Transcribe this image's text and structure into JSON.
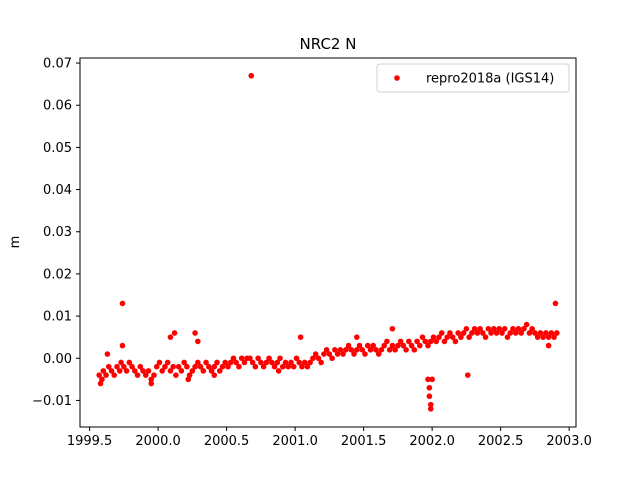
{
  "chart_data": {
    "type": "scatter",
    "title": "NRC2 N",
    "xlabel": "",
    "ylabel": "m",
    "xlim": [
      1999.43,
      2003.05
    ],
    "ylim": [
      -0.0163,
      0.0712
    ],
    "xticks": [
      1999.5,
      2000.0,
      2000.5,
      2001.0,
      2001.5,
      2002.0,
      2002.5,
      2003.0
    ],
    "xtick_labels": [
      "1999.5",
      "2000.0",
      "2000.5",
      "2001.0",
      "2001.5",
      "2002.0",
      "2002.5",
      "2003.0"
    ],
    "yticks": [
      -0.01,
      0.0,
      0.01,
      0.02,
      0.03,
      0.04,
      0.05,
      0.06,
      0.07
    ],
    "ytick_labels": [
      "−0.01",
      "0.00",
      "0.01",
      "0.02",
      "0.03",
      "0.04",
      "0.05",
      "0.06",
      "0.07"
    ],
    "grid": false,
    "legend": {
      "placement": "top-right",
      "entries": [
        "repro2018a (IGS14)"
      ]
    },
    "series": [
      {
        "name": "repro2018a (IGS14)",
        "color": "#ff0000",
        "marker": "circle",
        "x": [
          1999.57,
          1999.59,
          1999.6,
          1999.62,
          1999.64,
          1999.66,
          1999.68,
          1999.7,
          1999.72,
          1999.73,
          1999.75,
          1999.77,
          1999.79,
          1999.81,
          1999.83,
          1999.85,
          1999.87,
          1999.89,
          1999.91,
          1999.93,
          1999.95,
          1999.97,
          1999.99,
          2000.01,
          2000.03,
          2000.05,
          2000.07,
          2000.09,
          2000.11,
          2000.13,
          2000.15,
          2000.17,
          2000.19,
          2000.21,
          2000.23,
          2000.25,
          2000.27,
          2000.29,
          2000.31,
          2000.33,
          2000.35,
          2000.37,
          2000.39,
          2000.41,
          2000.43,
          2000.45,
          2000.47,
          2000.49,
          2000.51,
          2000.53,
          2000.55,
          2000.57,
          2000.59,
          2000.61,
          2000.63,
          2000.65,
          2000.67,
          2000.69,
          2000.71,
          2000.73,
          2000.75,
          2000.77,
          2000.79,
          2000.81,
          2000.83,
          2000.85,
          2000.87,
          2000.89,
          2000.91,
          2000.93,
          2000.95,
          2000.97,
          2000.99,
          2001.01,
          2001.03,
          2001.05,
          2001.07,
          2001.09,
          2001.11,
          2001.13,
          2001.15,
          2001.17,
          2001.19,
          2001.21,
          2001.23,
          2001.25,
          2001.27,
          2001.29,
          2001.31,
          2001.33,
          2001.35,
          2001.37,
          2001.39,
          2001.41,
          2001.43,
          2001.45,
          2001.47,
          2001.49,
          2001.51,
          2001.53,
          2001.55,
          2001.57,
          2001.59,
          2001.61,
          2001.63,
          2001.65,
          2001.67,
          2001.69,
          2001.71,
          2001.73,
          2001.75,
          2001.77,
          2001.79,
          2001.81,
          2001.83,
          2001.85,
          2001.87,
          2001.89,
          2001.91,
          2001.93,
          2001.95,
          2001.97,
          2001.99,
          2002.01,
          2002.03,
          2002.05,
          2002.07,
          2002.09,
          2002.11,
          2002.13,
          2002.15,
          2002.17,
          2002.19,
          2002.21,
          2002.23,
          2002.25,
          2002.27,
          2002.29,
          2002.31,
          2002.33,
          2002.35,
          2002.37,
          2002.39,
          2002.41,
          2002.43,
          2002.45,
          2002.47,
          2002.49,
          2002.51,
          2002.53,
          2002.55,
          2002.57,
          2002.59,
          2002.61,
          2002.63,
          2002.65,
          2002.67,
          2002.69,
          2002.71,
          2002.73,
          2002.75,
          2002.77,
          2002.79,
          2002.81,
          2002.83,
          2002.85,
          2002.87,
          2002.89,
          2002.91,
          1999.74,
          1999.74,
          1999.63,
          2000.09,
          2000.12,
          2000.27,
          2000.29,
          2000.68,
          2001.04,
          2001.45,
          2001.97,
          2001.98,
          2001.98,
          2001.99,
          2001.99,
          2002.0,
          2002.26,
          2002.9,
          1999.58,
          1999.95,
          2000.22,
          2000.41,
          2000.88,
          2001.71,
          2002.85
        ],
        "y": [
          -0.004,
          -0.005,
          -0.003,
          -0.004,
          -0.002,
          -0.003,
          -0.004,
          -0.002,
          -0.003,
          -0.001,
          -0.002,
          -0.003,
          -0.001,
          -0.002,
          -0.003,
          -0.004,
          -0.002,
          -0.003,
          -0.004,
          -0.003,
          -0.005,
          -0.004,
          -0.002,
          -0.001,
          -0.003,
          -0.002,
          -0.001,
          -0.003,
          -0.002,
          -0.004,
          -0.002,
          -0.003,
          -0.001,
          -0.002,
          -0.004,
          -0.003,
          -0.002,
          -0.001,
          -0.002,
          -0.003,
          -0.001,
          -0.002,
          -0.003,
          -0.002,
          -0.001,
          -0.003,
          -0.002,
          -0.001,
          -0.002,
          -0.001,
          0.0,
          -0.001,
          -0.002,
          0.0,
          -0.001,
          0.0,
          0.0,
          -0.001,
          -0.002,
          0.0,
          -0.001,
          -0.002,
          -0.001,
          0.0,
          -0.001,
          -0.002,
          -0.001,
          0.0,
          -0.002,
          -0.001,
          -0.002,
          -0.001,
          -0.002,
          0.0,
          -0.001,
          -0.002,
          -0.001,
          -0.002,
          -0.001,
          0.0,
          0.001,
          0.0,
          -0.001,
          0.001,
          0.002,
          0.001,
          0.0,
          0.002,
          0.001,
          0.002,
          0.001,
          0.002,
          0.003,
          0.002,
          0.001,
          0.002,
          0.003,
          0.002,
          0.001,
          0.003,
          0.002,
          0.003,
          0.002,
          0.001,
          0.002,
          0.003,
          0.004,
          0.002,
          0.003,
          0.002,
          0.003,
          0.004,
          0.003,
          0.002,
          0.004,
          0.003,
          0.002,
          0.004,
          0.003,
          0.005,
          0.004,
          0.003,
          0.004,
          0.005,
          0.004,
          0.005,
          0.006,
          0.004,
          0.005,
          0.006,
          0.005,
          0.004,
          0.006,
          0.005,
          0.006,
          0.007,
          0.005,
          0.006,
          0.007,
          0.006,
          0.007,
          0.006,
          0.005,
          0.007,
          0.006,
          0.007,
          0.006,
          0.007,
          0.006,
          0.007,
          0.005,
          0.006,
          0.007,
          0.006,
          0.007,
          0.006,
          0.007,
          0.008,
          0.006,
          0.007,
          0.006,
          0.005,
          0.006,
          0.005,
          0.006,
          0.005,
          0.006,
          0.005,
          0.006,
          0.013,
          0.003,
          0.001,
          0.005,
          0.006,
          0.006,
          0.004,
          0.067,
          0.005,
          0.005,
          -0.005,
          -0.007,
          -0.009,
          -0.011,
          -0.012,
          -0.005,
          -0.004,
          0.013,
          -0.006,
          -0.006,
          -0.005,
          -0.004,
          -0.003,
          0.007,
          0.003
        ]
      }
    ]
  }
}
